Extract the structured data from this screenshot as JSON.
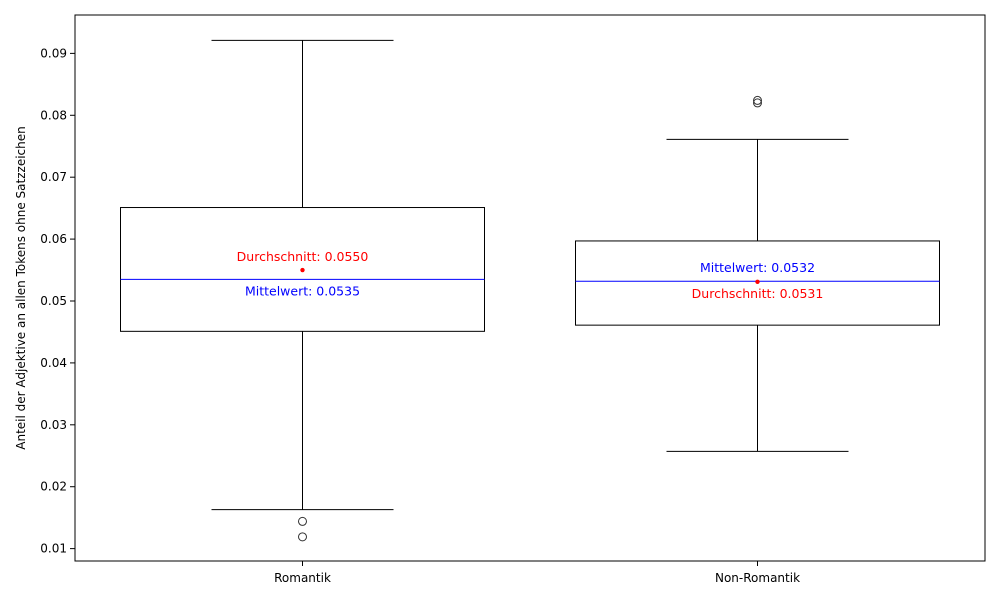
{
  "chart_data": {
    "type": "box",
    "title": "",
    "xlabel": "",
    "ylabel": "Anteil der Adjektive an allen Tokens ohne Satzzeichen",
    "ylim": [
      0.008,
      0.0962
    ],
    "yticks": [
      0.01,
      0.02,
      0.03,
      0.04,
      0.05,
      0.06,
      0.07,
      0.08,
      0.09
    ],
    "categories": [
      "Romantik",
      "Non-Romantik"
    ],
    "boxes": [
      {
        "category": "Romantik",
        "whisker_low": 0.0163,
        "q1": 0.0451,
        "median": 0.0535,
        "q3": 0.0651,
        "whisker_high": 0.0921,
        "mean": 0.055,
        "outliers": [
          0.0144,
          0.0119
        ],
        "mean_label": "Durchschnitt: 0.0550",
        "median_label": "Mittelwert: 0.0535"
      },
      {
        "category": "Non-Romantik",
        "whisker_low": 0.0257,
        "q1": 0.0461,
        "median": 0.0532,
        "q3": 0.0597,
        "whisker_high": 0.0761,
        "mean": 0.0531,
        "outliers": [
          0.0824,
          0.082
        ],
        "mean_label": "Durchschnitt: 0.0531",
        "median_label": "Mittelwert: 0.0532"
      }
    ],
    "colors": {
      "box": "#000000",
      "median": "#0000ff",
      "mean": "#ff0000"
    }
  }
}
